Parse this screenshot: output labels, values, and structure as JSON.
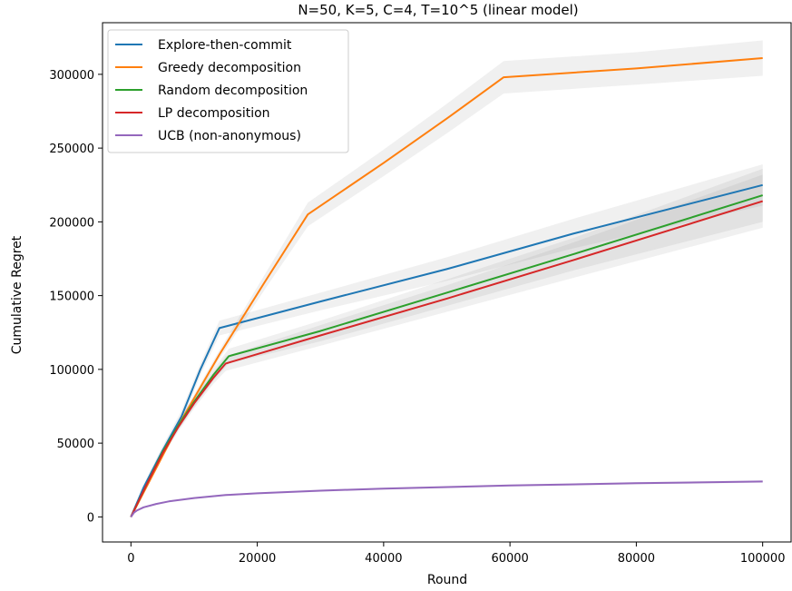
{
  "chart_data": {
    "type": "line",
    "title": "N=50, K=5, C=4, T=10^5 (linear model)",
    "xlabel": "Round",
    "ylabel": "Cumulative Regret",
    "xlim": [
      -4500,
      104500
    ],
    "ylim": [
      -17000,
      335000
    ],
    "xticks": [
      0,
      20000,
      40000,
      60000,
      80000,
      100000
    ],
    "yticks": [
      0,
      50000,
      100000,
      150000,
      200000,
      250000,
      300000
    ],
    "grid": false,
    "legend_position": "top-left",
    "series": [
      {
        "name": "Explore-then-commit",
        "color": "#1f77b4",
        "x": [
          0,
          2000,
          5000,
          8000,
          11000,
          14000,
          30000,
          50000,
          70000,
          100000
        ],
        "y": [
          0,
          20000,
          45000,
          68000,
          100000,
          128000,
          146000,
          168000,
          192000,
          225000
        ],
        "band": [
          0,
          2000,
          3000,
          4000,
          4000,
          5000,
          6000,
          8000,
          10000,
          14000
        ]
      },
      {
        "name": "Greedy decomposition",
        "color": "#ff7f0e",
        "x": [
          0,
          7500,
          14000,
          21000,
          28000,
          40000,
          50000,
          59000,
          80000,
          100000
        ],
        "y": [
          0,
          62000,
          110000,
          158000,
          205000,
          240000,
          270000,
          298000,
          304000,
          311000
        ],
        "band": [
          0,
          2000,
          3000,
          5000,
          8000,
          9000,
          10000,
          11000,
          11000,
          12000
        ]
      },
      {
        "name": "Random decomposition",
        "color": "#2ca02c",
        "x": [
          0,
          2500,
          5000,
          7500,
          10000,
          13000,
          15500,
          30000,
          50000,
          70000,
          100000
        ],
        "y": [
          0,
          22000,
          44000,
          62000,
          78000,
          96000,
          109000,
          126000,
          152000,
          178000,
          218000
        ],
        "band": [
          0,
          1000,
          2000,
          3000,
          3500,
          4000,
          5000,
          7000,
          9000,
          11000,
          18000
        ]
      },
      {
        "name": "LP decomposition",
        "color": "#d62728",
        "x": [
          0,
          2500,
          5000,
          7500,
          10000,
          13000,
          15000,
          30000,
          50000,
          70000,
          100000
        ],
        "y": [
          0,
          22000,
          43000,
          61000,
          77000,
          94000,
          104000,
          123000,
          148000,
          174000,
          214000
        ],
        "band": [
          0,
          1000,
          2000,
          3000,
          3500,
          4000,
          5000,
          7000,
          9000,
          12000,
          18000
        ]
      },
      {
        "name": "UCB (non-anonymous)",
        "color": "#9467bd",
        "x": [
          0,
          500,
          1000,
          2000,
          4000,
          6000,
          10000,
          15000,
          20000,
          30000,
          40000,
          60000,
          80000,
          100000
        ],
        "y": [
          0,
          3000,
          4500,
          6500,
          8800,
          10500,
          12800,
          14800,
          16000,
          17800,
          19200,
          21300,
          22800,
          24000
        ],
        "band": [
          0,
          300,
          400,
          500,
          500,
          500,
          600,
          600,
          600,
          700,
          700,
          700,
          800,
          800
        ]
      }
    ]
  }
}
